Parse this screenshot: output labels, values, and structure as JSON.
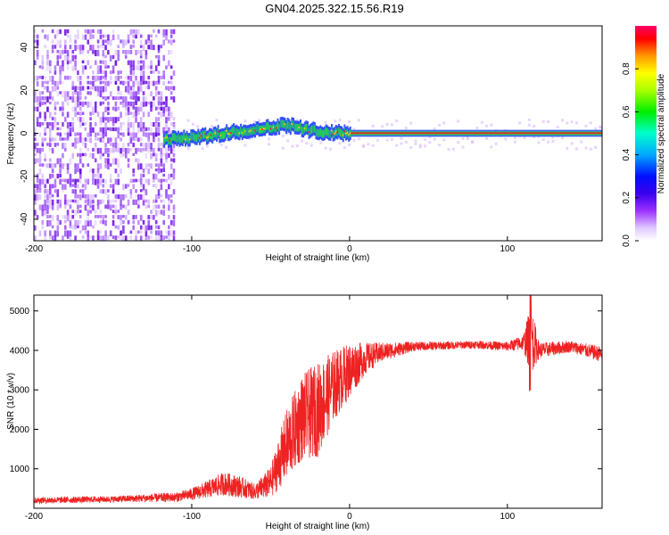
{
  "title": "GN04.2025.322.15.56.R19",
  "colors": {
    "trace": "#ee2222",
    "ridge_low": "#2040ff",
    "ridge_mid": "#22dd44",
    "ridge_high": "#ee2222",
    "noise": "#7a22ee"
  },
  "chart_data": [
    {
      "type": "heatmap",
      "title": "GN04.2025.322.15.56.R19",
      "xlabel": "Height of straight line (km)",
      "ylabel": "Frequency (Hz)",
      "xlim": [
        -200,
        160
      ],
      "ylim": [
        -50,
        50
      ],
      "x_ticks": [
        "-200",
        "-100",
        "0",
        "100"
      ],
      "y_ticks": [
        "-40",
        "-20",
        "0",
        "20",
        "40"
      ],
      "colorbar": {
        "label": "Normalized spectral amplitude",
        "range": [
          0,
          1
        ],
        "ticks": [
          "0.0",
          "0.2",
          "0.4",
          "0.6",
          "0.8"
        ],
        "colormap": [
          "#ffffff",
          "#e6ccff",
          "#9933ff",
          "#4400ee",
          "#0000ff",
          "#00aaff",
          "#00ffcc",
          "#00ee00",
          "#aaff00",
          "#ffff00",
          "#ff9900",
          "#ff0000",
          "#ff0066"
        ]
      },
      "ridge": {
        "start_x": -118,
        "end_x": 160,
        "freq_points": [
          [
            -118,
            -3
          ],
          [
            -100,
            -2
          ],
          [
            -80,
            0
          ],
          [
            -60,
            2
          ],
          [
            -40,
            4
          ],
          [
            -30,
            2
          ],
          [
            -15,
            0.5
          ],
          [
            0,
            0
          ],
          [
            160,
            0
          ]
        ]
      },
      "noise_region": [
        -200,
        -95
      ],
      "sparse_noise_region": [
        -85,
        -55
      ]
    },
    {
      "type": "line",
      "xlabel": "Height of straight line (km)",
      "ylabel": "SNR (10 * v/v)",
      "xlim": [
        -200,
        160
      ],
      "ylim": [
        0,
        5400
      ],
      "x_ticks": [
        "-200",
        "-100",
        "0",
        "100"
      ],
      "y_ticks": [
        "1000",
        "2000",
        "3000",
        "4000",
        "5000"
      ],
      "series": [
        {
          "name": "SNR",
          "envelope": [
            [
              -200,
              200,
              80
            ],
            [
              -150,
              230,
              80
            ],
            [
              -110,
              280,
              120
            ],
            [
              -100,
              360,
              150
            ],
            [
              -90,
              480,
              220
            ],
            [
              -80,
              620,
              300
            ],
            [
              -70,
              550,
              280
            ],
            [
              -60,
              420,
              200
            ],
            [
              -50,
              650,
              400
            ],
            [
              -40,
              1600,
              900
            ],
            [
              -30,
              2300,
              1100
            ],
            [
              -20,
              2500,
              1200
            ],
            [
              -10,
              3100,
              900
            ],
            [
              0,
              3500,
              700
            ],
            [
              10,
              3800,
              400
            ],
            [
              20,
              3950,
              250
            ],
            [
              40,
              4100,
              120
            ],
            [
              60,
              4120,
              100
            ],
            [
              80,
              4150,
              100
            ],
            [
              100,
              4100,
              120
            ],
            [
              110,
              4200,
              200
            ],
            [
              115,
              4300,
              900
            ],
            [
              120,
              4000,
              200
            ],
            [
              140,
              4100,
              150
            ],
            [
              160,
              3900,
              200
            ]
          ]
        }
      ]
    }
  ]
}
